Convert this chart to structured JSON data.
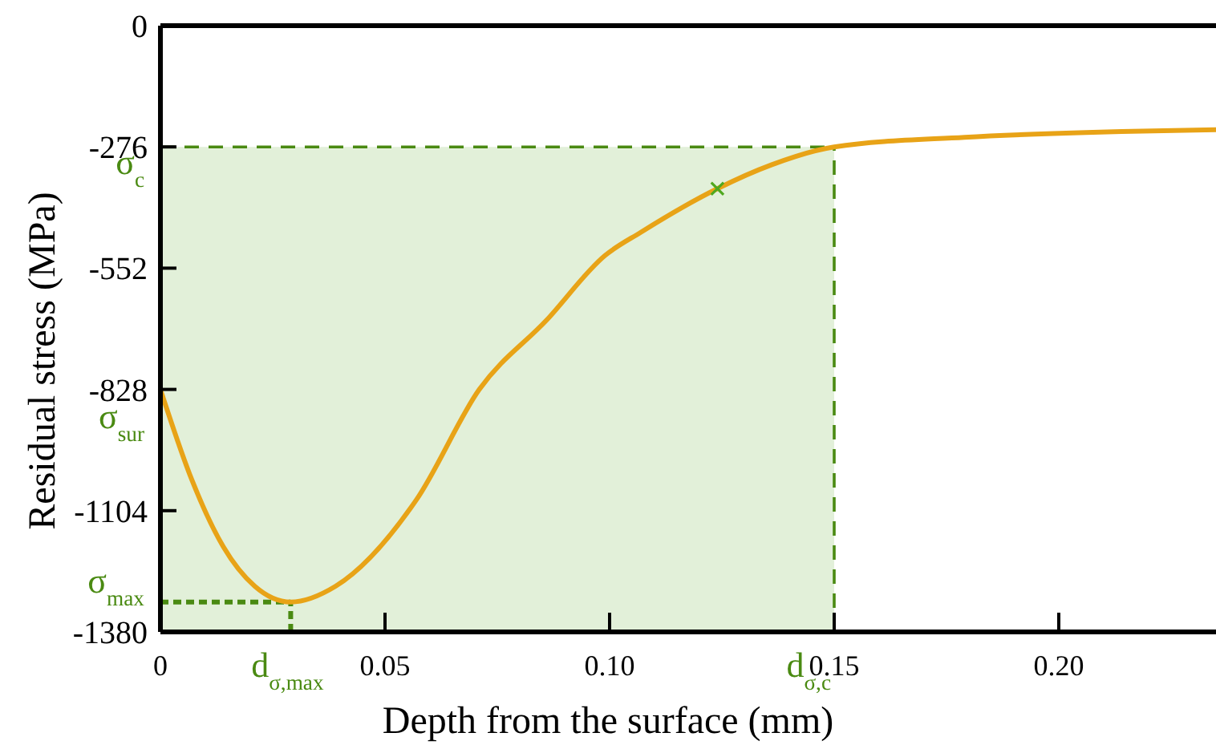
{
  "chart_data": {
    "type": "line",
    "xlabel": "Depth from the surface (mm)",
    "ylabel": "Residual stress (MPa)",
    "xlim": [
      0,
      0.235
    ],
    "xticks": [
      0,
      0.05,
      {
        "value": 0.1,
        "label": "0.10"
      },
      0.15,
      {
        "value": 0.2,
        "label": "0.20"
      }
    ],
    "ylim": [
      -1380,
      0
    ],
    "yticks": [
      0,
      -276,
      -552,
      -828,
      -1104,
      -1380
    ],
    "series": [
      {
        "color": "#e8a317",
        "x": [
          0,
          0.007,
          0.014,
          0.021,
          0.029,
          0.039,
          0.057,
          0.071,
          0.086,
          0.099,
          0.107,
          0.124,
          0.136,
          0.15,
          0.179,
          0.214,
          0.235
        ],
        "values": [
          -828,
          -1034,
          -1186,
          -1276,
          -1312,
          -1276,
          -1079,
          -828,
          -670,
          -523,
          -470,
          -371,
          -317,
          -276,
          -254,
          -241,
          -237
        ]
      },
      {
        "type": "scatter",
        "marker": "cross",
        "color": "#4fa81f",
        "x": [
          0.124
        ],
        "values": [
          -371
        ]
      }
    ],
    "bands": [
      {
        "axis": "x",
        "from": 0,
        "to": 0.15,
        "color": "#e2f0d9"
      }
    ],
    "ref_lines": [
      {
        "axis": "y",
        "value": -276,
        "label": "σ$_{c}$",
        "color": "#4a8a12",
        "line_style": "dashed"
      },
      {
        "axis": "x",
        "value": 0.15,
        "label": "d$_{σ,c}$",
        "color": "#4a8a12",
        "line_style": "dashed"
      },
      {
        "axis": "y",
        "value": -1312,
        "label": "σ$_{max}$",
        "color": "#4a8a12",
        "line_style": "dotted"
      },
      {
        "axis": "x",
        "value": 0.029,
        "label": "d$_{σ,max}$",
        "color": "#4a8a12",
        "line_style": "dotted"
      }
    ],
    "annotations": [
      {
        "text": "σ$_{sur}$",
        "x": 0,
        "y": -828
      }
    ],
    "grid": false
  }
}
